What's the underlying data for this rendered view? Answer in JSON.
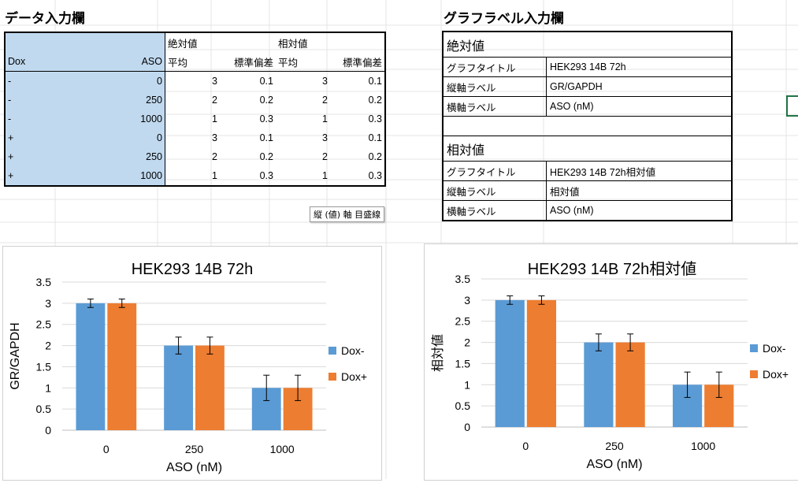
{
  "sheet": {
    "data_section_title": "データ入力欄",
    "label_section_title": "グラフラベル入力欄",
    "tooltip": "縦 (値) 軸 目盛線"
  },
  "data_table": {
    "group_headers": [
      "絶対値",
      "相対値"
    ],
    "columns": [
      "Dox",
      "ASO",
      "平均",
      "標準偏差",
      "平均",
      "標準偏差"
    ],
    "rows": [
      {
        "dox": "-",
        "aso": "0",
        "abs_mean": "3",
        "abs_sd": "0.1",
        "rel_mean": "3",
        "rel_sd": "0.1"
      },
      {
        "dox": "-",
        "aso": "250",
        "abs_mean": "2",
        "abs_sd": "0.2",
        "rel_mean": "2",
        "rel_sd": "0.2"
      },
      {
        "dox": "-",
        "aso": "1000",
        "abs_mean": "1",
        "abs_sd": "0.3",
        "rel_mean": "1",
        "rel_sd": "0.3"
      },
      {
        "dox": "+",
        "aso": "0",
        "abs_mean": "3",
        "abs_sd": "0.1",
        "rel_mean": "3",
        "rel_sd": "0.1"
      },
      {
        "dox": "+",
        "aso": "250",
        "abs_mean": "2",
        "abs_sd": "0.2",
        "rel_mean": "2",
        "rel_sd": "0.2"
      },
      {
        "dox": "+",
        "aso": "1000",
        "abs_mean": "1",
        "abs_sd": "0.3",
        "rel_mean": "1",
        "rel_sd": "0.3"
      }
    ]
  },
  "label_table": {
    "absolute": {
      "heading": "絶対値",
      "rows": [
        {
          "key": "グラフタイトル",
          "value": "HEK293 14B 72h"
        },
        {
          "key": "縦軸ラベル",
          "value": "GR/GAPDH"
        },
        {
          "key": "横軸ラベル",
          "value": "ASO (nM)"
        }
      ]
    },
    "relative": {
      "heading": "相対値",
      "rows": [
        {
          "key": "グラフタイトル",
          "value": "HEK293 14B 72h相対値"
        },
        {
          "key": "縦軸ラベル",
          "value": "相対値"
        },
        {
          "key": "横軸ラベル",
          "value": "ASO (nM)"
        }
      ]
    }
  },
  "colors": {
    "dox_minus": "#5b9bd5",
    "dox_plus": "#ed7d31",
    "grid": "#d9d9d9",
    "cell_bg": "#c0d9ef"
  },
  "chart_data": [
    {
      "type": "bar",
      "title": "HEK293 14B 72h",
      "xlabel": "ASO (nM)",
      "ylabel": "GR/GAPDH",
      "categories": [
        "0",
        "250",
        "1000"
      ],
      "series": [
        {
          "name": "Dox-",
          "values": [
            3,
            2,
            1
          ],
          "errors": [
            0.1,
            0.2,
            0.3
          ]
        },
        {
          "name": "Dox+",
          "values": [
            3,
            2,
            1
          ],
          "errors": [
            0.1,
            0.2,
            0.3
          ]
        }
      ],
      "ylim": [
        0,
        3.5
      ],
      "yticks": [
        "0",
        "0.5",
        "1",
        "1.5",
        "2",
        "2.5",
        "3",
        "3.5"
      ],
      "grid": true,
      "legend": "right"
    },
    {
      "type": "bar",
      "title": "HEK293 14B 72h相対値",
      "xlabel": "ASO (nM)",
      "ylabel": "相対値",
      "categories": [
        "0",
        "250",
        "1000"
      ],
      "series": [
        {
          "name": "Dox-",
          "values": [
            3,
            2,
            1
          ],
          "errors": [
            0.1,
            0.2,
            0.3
          ]
        },
        {
          "name": "Dox+",
          "values": [
            3,
            2,
            1
          ],
          "errors": [
            0.1,
            0.2,
            0.3
          ]
        }
      ],
      "ylim": [
        0,
        3.5
      ],
      "yticks": [
        "0",
        "0.5",
        "1",
        "1.5",
        "2",
        "2.5",
        "3",
        "3.5"
      ],
      "grid": true,
      "legend": "right"
    }
  ]
}
